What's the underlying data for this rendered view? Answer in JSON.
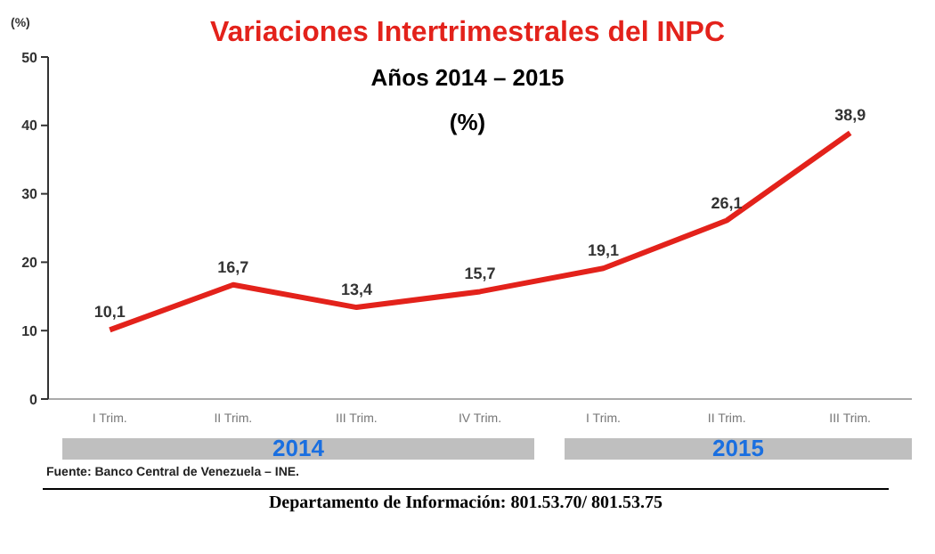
{
  "chart_data": {
    "type": "line",
    "title": "Variaciones Intertrimestrales del INPC",
    "subtitle": "Años 2014 – 2015",
    "ylabel": "(%)",
    "categories": [
      "I Trim.",
      "II Trim.",
      "III Trim.",
      "IV Trim.",
      "I Trim.",
      "II Trim.",
      "III Trim."
    ],
    "series": [
      {
        "color": "#e3221b",
        "values": [
          10.1,
          16.7,
          13.4,
          15.7,
          19.1,
          26.1,
          38.9
        ],
        "value_labels": [
          "10,1",
          "16,7",
          "13,4",
          "15,7",
          "19,1",
          "26,1",
          "38,9"
        ]
      }
    ],
    "ylim": [
      0,
      50
    ],
    "yticks": [
      0,
      10,
      20,
      30,
      40,
      50
    ],
    "grid": false,
    "legend": false,
    "annotations": [
      "(%)",
      "2014",
      "2015",
      "Fuente: Banco Central de Venezuela – INE.",
      "Departamento de Información: 801.53.70/ 801.53.75"
    ]
  }
}
